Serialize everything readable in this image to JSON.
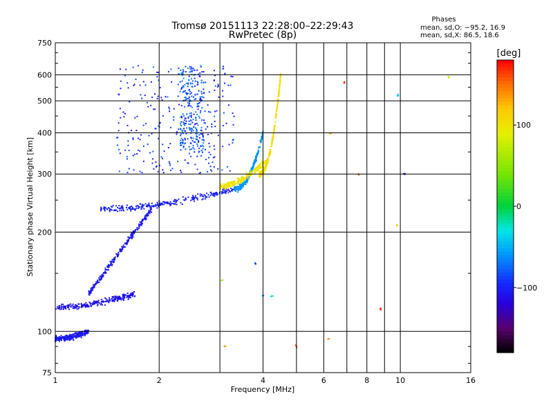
{
  "chart_data": {
    "type": "scatter",
    "title": "Tromsø 20151113 22:28:00–22:29:43",
    "subtitle": "RwPretec (8p)",
    "xlabel": "Frequency [MHz]",
    "ylabel": "Stationary phase Virtual Height [km]",
    "x_scale": "log",
    "y_scale": "log",
    "xlim": [
      1,
      16
    ],
    "ylim": [
      75,
      750
    ],
    "x_ticks": [
      1,
      2,
      4,
      6,
      8,
      10,
      16
    ],
    "x_minor_ticks": [
      3,
      5,
      7,
      9
    ],
    "y_ticks": [
      75,
      100,
      200,
      300,
      400,
      500,
      600,
      750
    ],
    "grid": true,
    "stats": {
      "heading": "Phases",
      "line1": "mean, sd,O: −95.2, 16.9",
      "line2": "mean, sd,X:  86.5, 18.6"
    },
    "colorbar": {
      "label": "[deg]",
      "min": -180,
      "max": 180,
      "ticks": [
        100,
        0,
        -100
      ],
      "tick_labels": [
        "100",
        "0",
        "−100"
      ]
    },
    "traces": [
      {
        "note": "O-mode E/F1 low trace",
        "x_range": [
          1.0,
          1.25
        ],
        "y_range": [
          95,
          100
        ],
        "phase": -105,
        "spread": 4
      },
      {
        "note": "O-mode lower trace",
        "x_range": [
          1.0,
          1.7
        ],
        "y_range": [
          118,
          130
        ],
        "phase": -110,
        "spread": 8
      },
      {
        "note": "O-mode rising trace",
        "x_range": [
          1.25,
          1.9
        ],
        "y_range": [
          130,
          235
        ],
        "phase": -105,
        "spread": 12
      },
      {
        "note": "O-mode F2 trace",
        "x_range": [
          1.35,
          3.3
        ],
        "y_range": [
          235,
          270
        ],
        "phase": -100,
        "spread": 6
      },
      {
        "note": "O-mode F2 cusp",
        "x_range": [
          3.3,
          4.0
        ],
        "y_range": [
          270,
          400
        ],
        "phase": -60,
        "spread": 10
      },
      {
        "note": "X-mode F2 trace",
        "x_range": [
          3.0,
          4.1
        ],
        "y_range": [
          275,
          330
        ],
        "phase": 100,
        "spread": 8
      },
      {
        "note": "X-mode cusp",
        "x_range": [
          3.9,
          4.5
        ],
        "y_range": [
          300,
          600
        ],
        "phase": 105,
        "spread": 10
      },
      {
        "note": "Oblique multi-hop band",
        "x_range": [
          1.5,
          3.3
        ],
        "y_range": [
          300,
          640
        ],
        "phase": -95,
        "spread": 30
      },
      {
        "note": "Upper diffuse echoes",
        "x_range": [
          2.3,
          2.7
        ],
        "y_range": [
          350,
          640
        ],
        "phase": -80,
        "spread": 40
      }
    ],
    "isolated_points": [
      {
        "x": 4.0,
        "y": 128,
        "phase": -60
      },
      {
        "x": 4.25,
        "y": 128,
        "phase": -30
      },
      {
        "x": 3.8,
        "y": 160,
        "phase": -90
      },
      {
        "x": 3.05,
        "y": 143,
        "phase": 60
      },
      {
        "x": 8.8,
        "y": 117,
        "phase": 170
      },
      {
        "x": 6.2,
        "y": 95,
        "phase": 140
      },
      {
        "x": 6.3,
        "y": 400,
        "phase": 130
      },
      {
        "x": 7.6,
        "y": 300,
        "phase": 150
      },
      {
        "x": 10.3,
        "y": 300,
        "phase": -110
      },
      {
        "x": 9.85,
        "y": 520,
        "phase": -40
      },
      {
        "x": 6.9,
        "y": 570,
        "phase": 170
      },
      {
        "x": 13.8,
        "y": 590,
        "phase": 80
      },
      {
        "x": 9.8,
        "y": 210,
        "phase": 120
      },
      {
        "x": 3.1,
        "y": 90,
        "phase": 140
      },
      {
        "x": 5.0,
        "y": 90,
        "phase": 160
      }
    ]
  }
}
